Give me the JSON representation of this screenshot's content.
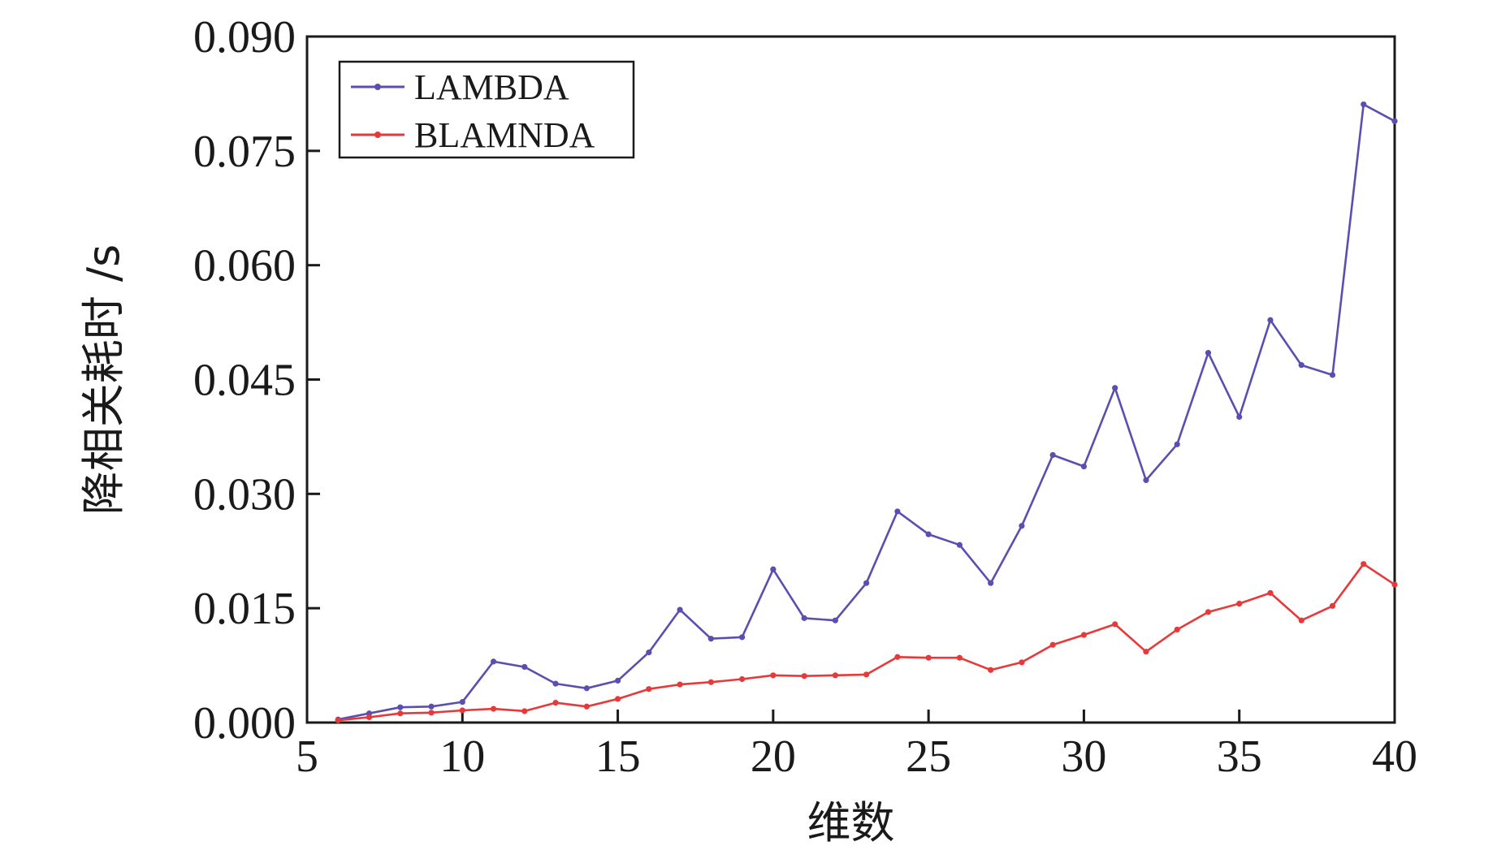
{
  "chart_data": {
    "type": "line",
    "xlabel": "维数",
    "ylabel": "降相关耗时 /s",
    "xlim": [
      5,
      40
    ],
    "ylim": [
      0,
      0.09
    ],
    "xticks": [
      "5",
      "10",
      "15",
      "20",
      "25",
      "30",
      "35",
      "40"
    ],
    "yticks": [
      "0.000",
      "0.015",
      "0.030",
      "0.045",
      "0.060",
      "0.075",
      "0.090"
    ],
    "grid": false,
    "legend_position": "top-left",
    "x": [
      6,
      7,
      8,
      9,
      10,
      11,
      12,
      13,
      14,
      15,
      16,
      17,
      18,
      19,
      20,
      21,
      22,
      23,
      24,
      25,
      26,
      27,
      28,
      29,
      30,
      31,
      32,
      33,
      34,
      35,
      36,
      37,
      38,
      39,
      40
    ],
    "series": [
      {
        "name": "LAMBDA",
        "color": "#5a4fb0",
        "values": [
          0.0004,
          0.0012,
          0.002,
          0.0021,
          0.0027,
          0.008,
          0.0073,
          0.0051,
          0.0045,
          0.0055,
          0.0092,
          0.0148,
          0.011,
          0.0112,
          0.0201,
          0.0137,
          0.0134,
          0.0183,
          0.0277,
          0.0247,
          0.0233,
          0.0183,
          0.0258,
          0.0351,
          0.0336,
          0.0439,
          0.0318,
          0.0365,
          0.0485,
          0.0401,
          0.0528,
          0.0469,
          0.0456,
          0.0811,
          0.0789
        ]
      },
      {
        "name": "BLAMNDA",
        "color": "#e8393a",
        "values": [
          0.0003,
          0.0007,
          0.0012,
          0.0013,
          0.0016,
          0.0018,
          0.0015,
          0.0026,
          0.0021,
          0.0031,
          0.0044,
          0.005,
          0.0053,
          0.0057,
          0.0062,
          0.0061,
          0.0062,
          0.0063,
          0.0086,
          0.0085,
          0.0085,
          0.0069,
          0.0079,
          0.0102,
          0.0115,
          0.0129,
          0.0093,
          0.0122,
          0.0145,
          0.0156,
          0.017,
          0.0134,
          0.0153,
          0.0208,
          0.0181
        ]
      }
    ]
  }
}
